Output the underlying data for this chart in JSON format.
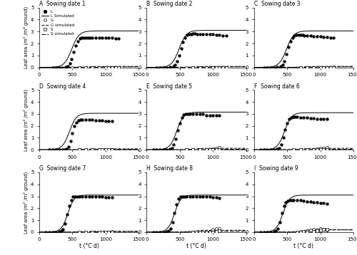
{
  "panels": [
    {
      "label": "A",
      "title": "Sowing date 1",
      "L_obs_x": [
        200,
        250,
        300,
        350,
        400,
        430,
        460,
        490,
        520,
        550,
        580,
        610,
        640,
        670,
        700,
        730,
        760,
        800,
        850,
        900,
        950,
        1000,
        1050,
        1100,
        1150,
        1200
      ],
      "L_obs_y": [
        0.0,
        0.0,
        0.0,
        0.0,
        0.05,
        0.12,
        0.3,
        0.7,
        1.3,
        1.8,
        2.2,
        2.4,
        2.5,
        2.5,
        2.5,
        2.5,
        2.5,
        2.5,
        2.5,
        2.5,
        2.45,
        2.45,
        2.45,
        2.45,
        2.4,
        2.4
      ],
      "L_sim_params": [
        3.05,
        490,
        55
      ],
      "G_obs_x": [
        500,
        600,
        700,
        800,
        900,
        1000,
        1100,
        1200
      ],
      "G_obs_y": [
        0.0,
        0.0,
        0.0,
        0.0,
        0.0,
        0.0,
        0.0,
        0.0
      ],
      "G_sim_params": [
        0.08,
        700,
        60
      ],
      "S_obs_x": [
        600,
        700,
        800,
        900,
        1000,
        1050,
        1100,
        1150,
        1200
      ],
      "S_obs_y": [
        0.0,
        0.0,
        0.0,
        0.0,
        0.0,
        0.0,
        0.0,
        0.0,
        0.0
      ],
      "S_sim_params": [
        0.05,
        950,
        60
      ]
    },
    {
      "label": "B",
      "title": "Sowing date 2",
      "L_obs_x": [
        150,
        200,
        250,
        300,
        350,
        400,
        430,
        460,
        490,
        520,
        550,
        580,
        610,
        640,
        670,
        700,
        730,
        760,
        800,
        850,
        900,
        950,
        1000,
        1050,
        1100,
        1150,
        1200
      ],
      "L_obs_y": [
        0.0,
        0.0,
        0.0,
        0.0,
        0.02,
        0.08,
        0.2,
        0.5,
        1.0,
        1.6,
        2.1,
        2.5,
        2.7,
        2.8,
        2.8,
        2.85,
        2.85,
        2.8,
        2.8,
        2.8,
        2.75,
        2.75,
        2.75,
        2.7,
        2.7,
        2.65,
        2.65
      ],
      "L_sim_params": [
        3.1,
        490,
        55
      ],
      "G_obs_x": [
        600,
        700,
        800,
        900,
        1000,
        1100,
        1200
      ],
      "G_obs_y": [
        0.0,
        0.0,
        0.0,
        0.0,
        0.0,
        0.0,
        0.0
      ],
      "G_sim_params": [
        0.08,
        720,
        60
      ],
      "S_obs_x": [
        700,
        800,
        900,
        1000,
        1050,
        1100,
        1150,
        1200
      ],
      "S_obs_y": [
        0.0,
        0.0,
        0.0,
        0.0,
        0.0,
        0.0,
        0.0,
        0.0
      ],
      "S_sim_params": [
        0.05,
        960,
        60
      ]
    },
    {
      "label": "C",
      "title": "Sowing date 3",
      "L_obs_x": [
        150,
        200,
        250,
        300,
        350,
        400,
        430,
        460,
        490,
        520,
        550,
        580,
        610,
        640,
        670,
        700,
        730,
        760,
        800,
        850,
        900,
        950,
        1000,
        1050,
        1100,
        1150,
        1200
      ],
      "L_obs_y": [
        0.0,
        0.0,
        0.0,
        0.0,
        0.02,
        0.08,
        0.2,
        0.5,
        1.1,
        1.7,
        2.2,
        2.5,
        2.65,
        2.7,
        2.7,
        2.7,
        2.7,
        2.65,
        2.65,
        2.65,
        2.6,
        2.6,
        2.6,
        2.55,
        2.55,
        2.5,
        2.5
      ],
      "L_sim_params": [
        3.05,
        490,
        55
      ],
      "G_obs_x": [
        700,
        800,
        900,
        1000,
        1100,
        1200
      ],
      "G_obs_y": [
        0.0,
        0.0,
        0.0,
        0.0,
        0.0,
        0.05
      ],
      "G_sim_params": [
        0.08,
        730,
        60
      ],
      "S_obs_x": [
        700,
        800,
        900,
        1000,
        1050,
        1100,
        1150,
        1200
      ],
      "S_obs_y": [
        0.0,
        0.0,
        0.0,
        0.0,
        0.0,
        0.0,
        0.0,
        0.0
      ],
      "S_sim_params": [
        0.05,
        960,
        60
      ]
    },
    {
      "label": "D",
      "title": "Sowing date 4",
      "L_obs_x": [
        150,
        200,
        250,
        300,
        350,
        380,
        410,
        440,
        470,
        500,
        530,
        560,
        590,
        620,
        650,
        700,
        750,
        800,
        850,
        900,
        950,
        1000,
        1050,
        1100
      ],
      "L_obs_y": [
        0.0,
        0.0,
        0.0,
        0.0,
        0.0,
        0.02,
        0.08,
        0.25,
        0.7,
        1.4,
        2.0,
        2.3,
        2.45,
        2.5,
        2.5,
        2.5,
        2.5,
        2.5,
        2.45,
        2.45,
        2.45,
        2.4,
        2.4,
        2.4
      ],
      "L_sim_params": [
        3.05,
        455,
        52
      ],
      "G_obs_x": [
        600,
        700,
        800,
        900,
        1000,
        1100
      ],
      "G_obs_y": [
        0.0,
        0.0,
        0.0,
        0.0,
        0.0,
        0.0
      ],
      "G_sim_params": [
        0.07,
        680,
        60
      ],
      "S_obs_x": [
        600,
        700,
        800,
        900,
        950,
        1000,
        1050,
        1100
      ],
      "S_obs_y": [
        0.0,
        0.0,
        0.0,
        0.0,
        0.0,
        0.0,
        0.0,
        0.0
      ],
      "S_sim_params": [
        0.04,
        900,
        60
      ]
    },
    {
      "label": "E",
      "title": "Sowing date 5",
      "L_obs_x": [
        100,
        150,
        200,
        250,
        300,
        350,
        380,
        410,
        440,
        470,
        500,
        530,
        560,
        590,
        620,
        650,
        700,
        750,
        800,
        850,
        900,
        950,
        1000,
        1050,
        1100
      ],
      "L_obs_y": [
        0.0,
        0.0,
        0.0,
        0.0,
        0.01,
        0.05,
        0.15,
        0.4,
        0.9,
        1.6,
        2.2,
        2.7,
        2.95,
        3.0,
        3.0,
        3.0,
        3.0,
        3.0,
        3.0,
        3.0,
        2.9,
        2.9,
        2.9,
        2.85,
        2.85
      ],
      "L_sim_params": [
        3.15,
        455,
        52
      ],
      "G_obs_x": [
        600,
        700,
        800,
        900,
        950,
        1000,
        1050,
        1100
      ],
      "G_obs_y": [
        0.0,
        0.0,
        0.0,
        0.0,
        0.0,
        0.05,
        0.15,
        0.2
      ],
      "G_sim_params": [
        0.12,
        700,
        60
      ],
      "S_obs_x": [
        600,
        700,
        800,
        900,
        950,
        1000,
        1050,
        1100
      ],
      "S_obs_y": [
        0.0,
        0.0,
        0.0,
        0.0,
        0.0,
        0.0,
        0.0,
        0.0
      ],
      "S_sim_params": [
        0.04,
        900,
        60
      ]
    },
    {
      "label": "F",
      "title": "Sowing date 6",
      "L_obs_x": [
        100,
        150,
        200,
        250,
        300,
        350,
        380,
        410,
        440,
        470,
        500,
        530,
        560,
        590,
        620,
        650,
        700,
        750,
        800,
        850,
        900,
        950,
        1000,
        1050,
        1100
      ],
      "L_obs_y": [
        0.0,
        0.0,
        0.0,
        0.0,
        0.01,
        0.05,
        0.15,
        0.4,
        1.0,
        1.7,
        2.2,
        2.55,
        2.7,
        2.75,
        2.75,
        2.75,
        2.7,
        2.7,
        2.7,
        2.65,
        2.65,
        2.6,
        2.6,
        2.55,
        2.55
      ],
      "L_sim_params": [
        3.1,
        460,
        52
      ],
      "G_obs_x": [
        700,
        800,
        900,
        950,
        1000,
        1050,
        1100
      ],
      "G_obs_y": [
        0.0,
        0.0,
        0.0,
        0.05,
        0.12,
        0.15,
        0.18
      ],
      "G_sim_params": [
        0.12,
        710,
        60
      ],
      "S_obs_x": [
        600,
        700,
        800,
        900,
        950,
        1000,
        1050,
        1100
      ],
      "S_obs_y": [
        0.0,
        0.0,
        0.0,
        0.0,
        0.0,
        0.0,
        0.0,
        0.0
      ],
      "S_sim_params": [
        0.04,
        900,
        60
      ]
    },
    {
      "label": "G",
      "title": "Sowing date 7",
      "L_obs_x": [
        100,
        150,
        200,
        250,
        300,
        330,
        360,
        390,
        420,
        450,
        480,
        510,
        540,
        570,
        600,
        650,
        700,
        750,
        800,
        850,
        900,
        950,
        1000,
        1050,
        1100
      ],
      "L_obs_y": [
        0.0,
        0.0,
        0.0,
        0.0,
        0.02,
        0.08,
        0.25,
        0.7,
        1.5,
        2.2,
        2.7,
        2.95,
        3.0,
        3.0,
        3.0,
        3.0,
        3.0,
        3.0,
        3.0,
        3.0,
        2.95,
        2.95,
        2.9,
        2.9,
        2.9
      ],
      "L_sim_params": [
        3.1,
        430,
        48
      ],
      "G_obs_x": [
        700,
        800,
        900,
        950,
        1000,
        1050,
        1100
      ],
      "G_obs_y": [
        0.0,
        0.0,
        0.0,
        0.0,
        0.0,
        0.0,
        0.05
      ],
      "G_sim_params": [
        0.07,
        660,
        60
      ],
      "S_obs_x": [
        600,
        700,
        800,
        900,
        950,
        1000,
        1050,
        1100
      ],
      "S_obs_y": [
        0.0,
        0.0,
        0.0,
        0.0,
        0.0,
        0.0,
        0.0,
        0.0
      ],
      "S_sim_params": [
        0.04,
        880,
        60
      ]
    },
    {
      "label": "H",
      "title": "Sowing date 8",
      "L_obs_x": [
        100,
        150,
        200,
        250,
        300,
        330,
        360,
        390,
        420,
        450,
        480,
        510,
        540,
        570,
        600,
        650,
        700,
        750,
        800,
        850,
        900,
        950,
        1000,
        1050,
        1100
      ],
      "L_obs_y": [
        0.0,
        0.0,
        0.0,
        0.0,
        0.02,
        0.08,
        0.3,
        0.8,
        1.6,
        2.3,
        2.8,
        3.0,
        3.0,
        3.0,
        3.0,
        3.0,
        3.0,
        3.0,
        3.0,
        3.0,
        2.95,
        2.95,
        2.9,
        2.9,
        2.85
      ],
      "L_sim_params": [
        3.1,
        420,
        48
      ],
      "G_obs_x": [
        750,
        800,
        850,
        900,
        950,
        1000,
        1050,
        1100
      ],
      "G_obs_y": [
        0.0,
        0.0,
        0.0,
        0.0,
        0.05,
        0.2,
        0.28,
        0.3
      ],
      "G_sim_params": [
        0.15,
        680,
        60
      ],
      "S_obs_x": [
        700,
        800,
        900,
        950,
        1000,
        1050,
        1100
      ],
      "S_obs_y": [
        0.0,
        0.0,
        0.0,
        0.0,
        0.0,
        0.05,
        0.1
      ],
      "S_sim_params": [
        0.08,
        890,
        60
      ]
    },
    {
      "label": "I",
      "title": "Sowing date 9",
      "L_obs_x": [
        100,
        150,
        200,
        250,
        300,
        330,
        360,
        390,
        420,
        450,
        480,
        510,
        540,
        570,
        600,
        650,
        700,
        750,
        800,
        850,
        900,
        950,
        1000,
        1050,
        1100
      ],
      "L_obs_y": [
        0.0,
        0.0,
        0.0,
        0.0,
        0.02,
        0.08,
        0.3,
        0.8,
        1.6,
        2.2,
        2.5,
        2.6,
        2.65,
        2.65,
        2.65,
        2.65,
        2.65,
        2.6,
        2.55,
        2.55,
        2.5,
        2.5,
        2.45,
        2.45,
        2.4
      ],
      "L_sim_params": [
        3.1,
        435,
        50
      ],
      "G_obs_x": [
        650,
        700,
        750,
        800,
        850,
        900,
        950,
        1000,
        1050,
        1100
      ],
      "G_obs_y": [
        0.0,
        0.0,
        0.05,
        0.1,
        0.15,
        0.2,
        0.25,
        0.3,
        0.22,
        0.18
      ],
      "G_sim_params": [
        0.2,
        700,
        60
      ],
      "S_obs_x": [
        700,
        800,
        900,
        950,
        1000,
        1050,
        1100
      ],
      "S_obs_y": [
        0.0,
        0.0,
        0.05,
        0.1,
        0.15,
        0.2,
        0.25
      ],
      "S_sim_params": [
        0.18,
        890,
        60
      ]
    }
  ],
  "xlim": [
    0,
    1500
  ],
  "ylim": [
    0,
    5
  ],
  "yticks": [
    0,
    1,
    2,
    3,
    4,
    5
  ],
  "xticks": [
    0,
    500,
    1000,
    1500
  ],
  "xlabel": "t (°C d)",
  "ylabel": "Leaf area (m² /m² ground)"
}
